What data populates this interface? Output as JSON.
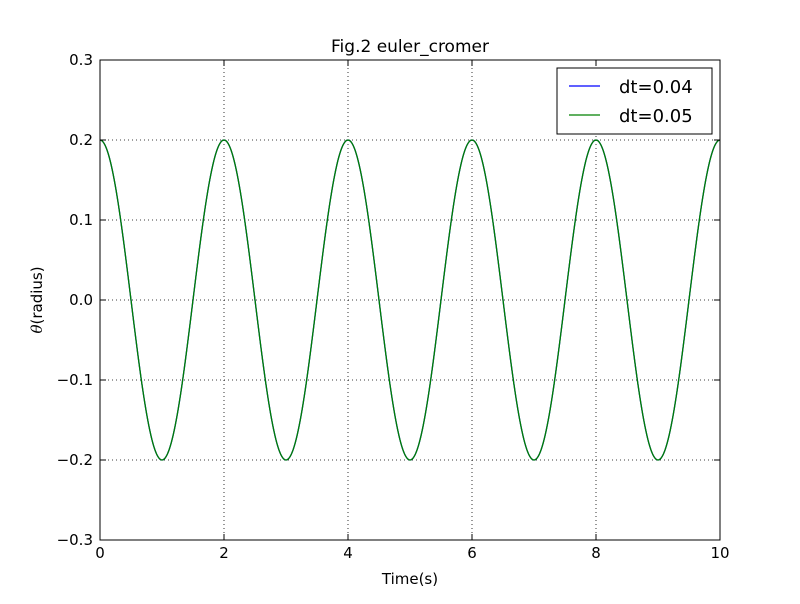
{
  "chart_data": {
    "type": "line",
    "title": "Fig.2 euler_cromer",
    "xlabel": "Time(s)",
    "ylabel_symbol": "θ",
    "ylabel_text": "(radius)",
    "xlim": [
      0,
      10
    ],
    "ylim": [
      -0.3,
      0.3
    ],
    "x_ticks": [
      0,
      2,
      4,
      6,
      8,
      10
    ],
    "x_tick_labels": [
      "0",
      "2",
      "4",
      "6",
      "8",
      "10"
    ],
    "y_ticks": [
      -0.3,
      -0.2,
      -0.1,
      0.0,
      0.1,
      0.2,
      0.3
    ],
    "y_tick_labels": [
      "−0.3",
      "−0.2",
      "−0.1",
      "0.0",
      "0.1",
      "0.2",
      "0.3"
    ],
    "grid": true,
    "legend_position": "top-right",
    "series": [
      {
        "name": "dt=0.04",
        "color": "#0000ff",
        "x": [
          0,
          0.5,
          1,
          1.5,
          2,
          2.5,
          3,
          3.5,
          4,
          4.5,
          5,
          5.5,
          6,
          6.5,
          7,
          7.5,
          8,
          8.5,
          9,
          9.5,
          10
        ],
        "y": [
          0.2,
          0.0,
          -0.2,
          0.0,
          0.2,
          0.0,
          -0.2,
          0.0,
          0.2,
          0.0,
          -0.2,
          0.0,
          0.2,
          0.0,
          -0.2,
          0.0,
          0.2,
          0.0,
          -0.2,
          0.0,
          0.2
        ]
      },
      {
        "name": "dt=0.05",
        "color": "#008000",
        "x": [
          0,
          0.5,
          1,
          1.5,
          2,
          2.5,
          3,
          3.5,
          4,
          4.5,
          5,
          5.5,
          6,
          6.5,
          7,
          7.5,
          8,
          8.5,
          9,
          9.5,
          10
        ],
        "y": [
          0.2,
          0.0,
          -0.2,
          0.0,
          0.2,
          0.0,
          -0.2,
          0.0,
          0.2,
          0.0,
          -0.2,
          0.0,
          0.2,
          0.0,
          -0.2,
          0.0,
          0.2,
          0.0,
          -0.2,
          0.0,
          0.2
        ]
      }
    ]
  }
}
